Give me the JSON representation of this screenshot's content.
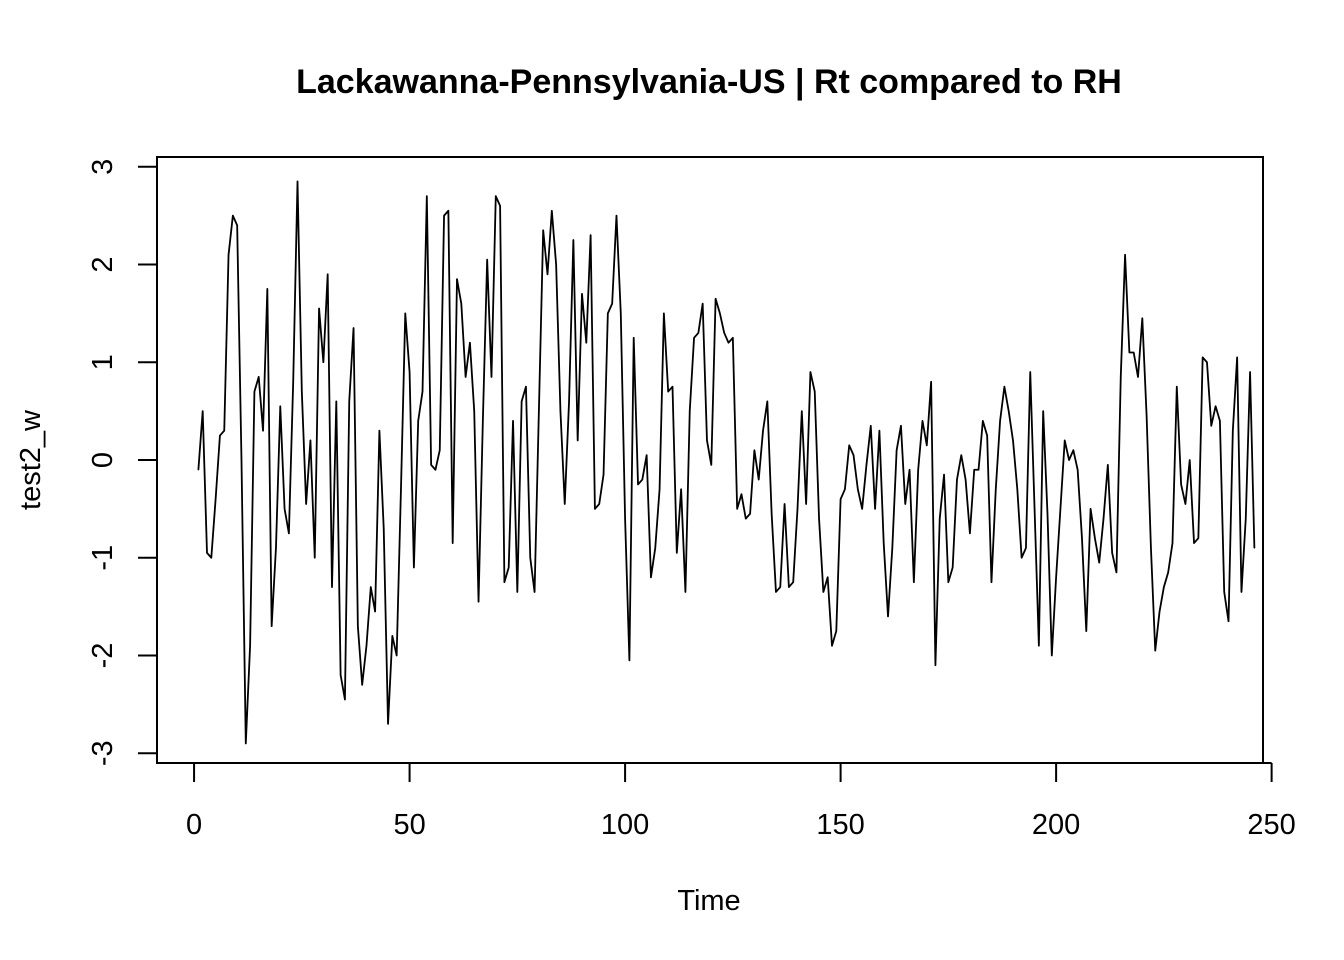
{
  "chart_data": {
    "type": "line",
    "title": "Lackawanna-Pennsylvania-US | Rt compared to RH",
    "xlabel": "Time",
    "ylabel": "test2_w",
    "xlim": [
      -8.6,
      248
    ],
    "ylim": [
      -3.1,
      3.1
    ],
    "x_ticks": [
      0,
      50,
      100,
      150,
      200,
      250
    ],
    "y_ticks": [
      -3,
      -2,
      -1,
      0,
      1,
      2,
      3
    ],
    "grid": false,
    "legend": "none",
    "series": [
      {
        "values": [
          -0.1,
          0.5,
          -0.95,
          -1.0,
          -0.4,
          0.25,
          0.3,
          2.1,
          2.5,
          2.4,
          0.0,
          -2.9,
          -1.9,
          0.7,
          0.85,
          0.3,
          1.75,
          -1.7,
          -0.9,
          0.55,
          -0.5,
          -0.75,
          0.8,
          2.85,
          0.7,
          -0.45,
          0.2,
          -1.0,
          1.55,
          1.0,
          1.9,
          -1.3,
          0.6,
          -2.2,
          -2.45,
          0.6,
          1.35,
          -1.7,
          -2.3,
          -1.9,
          -1.3,
          -1.55,
          0.3,
          -0.7,
          -2.7,
          -1.8,
          -2.0,
          -0.3,
          1.5,
          0.9,
          -1.1,
          0.4,
          0.7,
          2.7,
          -0.05,
          -0.1,
          0.1,
          2.5,
          2.55,
          -0.85,
          1.85,
          1.6,
          0.85,
          1.2,
          0.5,
          -1.45,
          0.4,
          2.05,
          0.85,
          2.7,
          2.6,
          -1.25,
          -1.1,
          0.4,
          -1.35,
          0.6,
          0.75,
          -1.0,
          -1.35,
          0.5,
          2.35,
          1.9,
          2.55,
          2.0,
          0.5,
          -0.45,
          0.6,
          2.25,
          0.2,
          1.7,
          1.2,
          2.3,
          -0.5,
          -0.45,
          -0.15,
          1.5,
          1.6,
          2.5,
          1.5,
          -0.6,
          -2.05,
          1.25,
          -0.25,
          -0.2,
          0.05,
          -1.2,
          -0.9,
          -0.3,
          1.5,
          0.7,
          0.75,
          -0.95,
          -0.3,
          -1.35,
          0.5,
          1.25,
          1.3,
          1.6,
          0.2,
          -0.05,
          1.65,
          1.5,
          1.3,
          1.2,
          1.25,
          -0.5,
          -0.35,
          -0.6,
          -0.55,
          0.1,
          -0.2,
          0.3,
          0.6,
          -0.55,
          -1.35,
          -1.3,
          -0.45,
          -1.3,
          -1.25,
          -0.5,
          0.5,
          -0.45,
          0.9,
          0.7,
          -0.6,
          -1.35,
          -1.2,
          -1.9,
          -1.75,
          -0.4,
          -0.3,
          0.15,
          0.05,
          -0.3,
          -0.5,
          -0.05,
          0.35,
          -0.5,
          0.3,
          -0.85,
          -1.6,
          -0.9,
          0.1,
          0.35,
          -0.45,
          -0.1,
          -1.25,
          -0.1,
          0.4,
          0.15,
          0.8,
          -2.1,
          -0.6,
          -0.15,
          -1.25,
          -1.1,
          -0.2,
          0.05,
          -0.2,
          -0.75,
          -0.1,
          -0.1,
          0.4,
          0.25,
          -1.25,
          -0.3,
          0.4,
          0.75,
          0.5,
          0.2,
          -0.3,
          -1.0,
          -0.9,
          0.9,
          -0.5,
          -1.9,
          0.5,
          -0.55,
          -2.0,
          -1.2,
          -0.5,
          0.2,
          0.0,
          0.1,
          -0.1,
          -0.8,
          -1.75,
          -0.5,
          -0.8,
          -1.05,
          -0.6,
          -0.05,
          -0.95,
          -1.15,
          0.85,
          2.1,
          1.1,
          1.1,
          0.85,
          1.45,
          0.45,
          -0.9,
          -1.95,
          -1.55,
          -1.3,
          -1.15,
          -0.85,
          0.75,
          -0.25,
          -0.45,
          0.0,
          -0.85,
          -0.8,
          1.05,
          1.0,
          0.35,
          0.55,
          0.4,
          -1.35,
          -1.65,
          0.3,
          1.05,
          -1.35,
          -0.6,
          0.9,
          -0.9
        ]
      }
    ]
  }
}
